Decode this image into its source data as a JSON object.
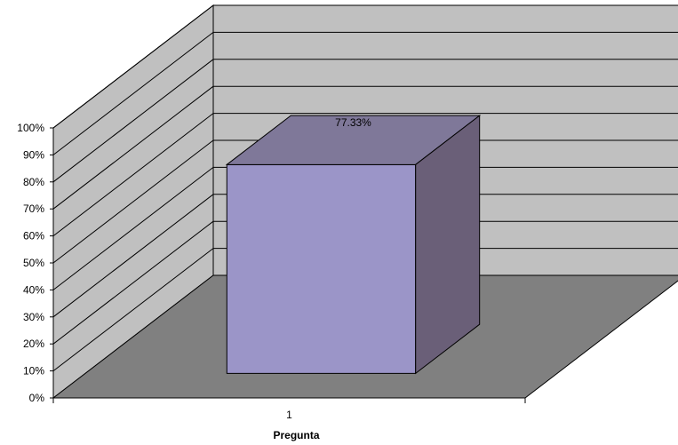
{
  "chart_data": {
    "type": "bar",
    "title": "",
    "xlabel": "Pregunta",
    "ylabel": "",
    "categories": [
      "1"
    ],
    "series": [
      {
        "values": [
          77.33
        ]
      }
    ],
    "data_labels": [
      "77.33%"
    ],
    "ylim": [
      0,
      100
    ],
    "y_tick_labels": [
      "0%",
      "10%",
      "20%",
      "30%",
      "40%",
      "50%",
      "60%",
      "70%",
      "80%",
      "90%",
      "100%"
    ],
    "grid": true,
    "legend": "none",
    "style": "3d",
    "colors": {
      "wall": "#c0c0c0",
      "floor": "#808080",
      "bar_front": "#9b95c8",
      "bar_top": "#7f7899",
      "bar_side": "#6a5f78",
      "grid": "#000000"
    }
  }
}
